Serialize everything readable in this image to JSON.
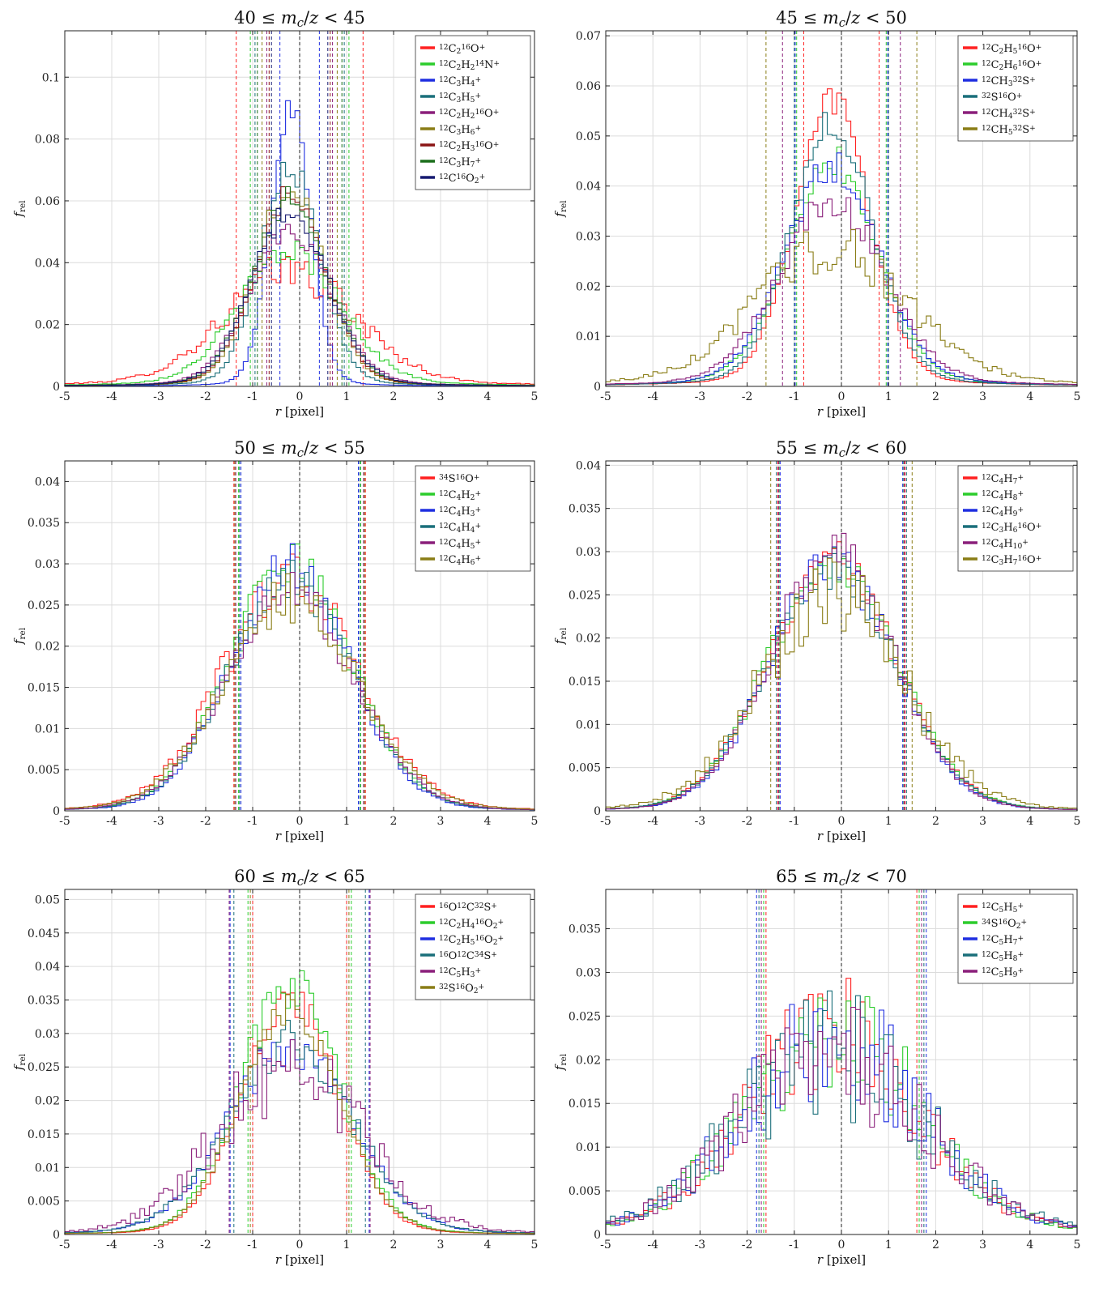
{
  "chart_data": [
    {
      "type": "histogram-step",
      "title": "40 ≤ m_c/z < 45",
      "xlabel": "r [pixel]",
      "ylabel": "f_rel",
      "xlim": [
        -5,
        5
      ],
      "ylim": [
        0,
        0.115
      ],
      "xticks": [
        -5,
        -4,
        -3,
        -2,
        -1,
        0,
        1,
        2,
        3,
        4,
        5
      ],
      "xtick_labels": [
        "-5",
        "-4",
        "-3",
        "-2",
        "-1",
        "0",
        "1",
        "2",
        "3",
        "4",
        "5"
      ],
      "yticks": [
        0,
        0.02,
        0.04,
        0.06,
        0.08,
        0.1
      ],
      "ytick_labels": [
        "0",
        "0.02",
        "0.04",
        "0.06",
        "0.08",
        "0.1"
      ],
      "grid": true,
      "legend_position": "top-right",
      "center_line_x": 0,
      "series": [
        {
          "name": "¹²C₂¹⁶O⁺",
          "color": "#ff2020",
          "peak": 0.04,
          "sigma": 1.35,
          "tail": 0.12,
          "noise": 0.18,
          "width_line": 1.35
        },
        {
          "name": "¹²C₂H₂¹⁴N⁺",
          "color": "#2ccc2c",
          "peak": 0.048,
          "sigma": 1.05,
          "tail": 0.1,
          "noise": 0.12,
          "width_line": 1.05
        },
        {
          "name": "¹²C₃H₄⁺",
          "color": "#1f2ee0",
          "peak": 0.104,
          "sigma": 0.42,
          "tail": 0.05,
          "noise": 0.06,
          "width_line": 0.42
        },
        {
          "name": "¹²C₃H₅⁺",
          "color": "#1a6f7a",
          "peak": 0.08,
          "sigma": 0.62,
          "tail": 0.07,
          "noise": 0.07,
          "width_line": 0.95
        },
        {
          "name": "¹²C₂H₂¹⁶O⁺",
          "color": "#8a1f7a",
          "peak": 0.057,
          "sigma": 0.85,
          "tail": 0.08,
          "noise": 0.08,
          "width_line": 0.7
        },
        {
          "name": "¹²C₃H₆⁺",
          "color": "#8a7d16",
          "peak": 0.073,
          "sigma": 0.72,
          "tail": 0.07,
          "noise": 0.07,
          "width_line": 0.8
        },
        {
          "name": "¹²C₂H₃¹⁶O⁺",
          "color": "#8a1414",
          "peak": 0.07,
          "sigma": 0.75,
          "tail": 0.07,
          "noise": 0.07,
          "width_line": 0.65
        },
        {
          "name": "¹²C₃H₇⁺",
          "color": "#1a6e1a",
          "peak": 0.068,
          "sigma": 0.78,
          "tail": 0.07,
          "noise": 0.07,
          "width_line": 0.9
        },
        {
          "name": "¹²C¹⁶O₂⁺",
          "color": "#161a70",
          "peak": 0.063,
          "sigma": 0.8,
          "tail": 0.07,
          "noise": 0.08,
          "width_line": 0.6
        }
      ]
    },
    {
      "type": "histogram-step",
      "title": "45 ≤ m_c/z < 50",
      "xlabel": "r [pixel]",
      "ylabel": "f_rel",
      "xlim": [
        -5,
        5
      ],
      "ylim": [
        0,
        0.071
      ],
      "xticks": [
        -5,
        -4,
        -3,
        -2,
        -1,
        0,
        1,
        2,
        3,
        4,
        5
      ],
      "xtick_labels": [
        "-5",
        "-4",
        "-3",
        "-2",
        "-1",
        "0",
        "1",
        "2",
        "3",
        "4",
        "5"
      ],
      "yticks": [
        0,
        0.01,
        0.02,
        0.03,
        0.04,
        0.05,
        0.06,
        0.07
      ],
      "ytick_labels": [
        "0",
        "0.01",
        "0.02",
        "0.03",
        "0.04",
        "0.05",
        "0.06",
        "0.07"
      ],
      "grid": true,
      "legend_position": "top-right",
      "center_line_x": 0,
      "series": [
        {
          "name": "¹²C₂H₅¹⁶O⁺",
          "color": "#ff2020",
          "peak": 0.064,
          "sigma": 0.78,
          "tail": 0.08,
          "noise": 0.06,
          "width_line": 0.8
        },
        {
          "name": "¹²C₂H₆¹⁶O⁺",
          "color": "#2ccc2c",
          "peak": 0.05,
          "sigma": 0.95,
          "tail": 0.09,
          "noise": 0.08,
          "width_line": 0.95
        },
        {
          "name": "¹²CH₃³²S⁺",
          "color": "#1f2ee0",
          "peak": 0.048,
          "sigma": 0.98,
          "tail": 0.09,
          "noise": 0.08,
          "width_line": 0.98
        },
        {
          "name": "³²S¹⁶O⁺",
          "color": "#1a6f7a",
          "peak": 0.059,
          "sigma": 0.85,
          "tail": 0.08,
          "noise": 0.07,
          "width_line": 1.0
        },
        {
          "name": "¹²CH₄³²S⁺",
          "color": "#8a1f7a",
          "peak": 0.04,
          "sigma": 1.1,
          "tail": 0.1,
          "noise": 0.1,
          "width_line": 1.25
        },
        {
          "name": "¹²CH₅³²S⁺",
          "color": "#8a7d16",
          "peak": 0.029,
          "sigma": 1.55,
          "tail": 0.14,
          "noise": 0.18,
          "width_line": 1.6
        }
      ]
    },
    {
      "type": "histogram-step",
      "title": "50 ≤ m_c/z < 55",
      "xlabel": "r [pixel]",
      "ylabel": "f_rel",
      "xlim": [
        -5,
        5
      ],
      "ylim": [
        0,
        0.0425
      ],
      "xticks": [
        -5,
        -4,
        -3,
        -2,
        -1,
        0,
        1,
        2,
        3,
        4,
        5
      ],
      "xtick_labels": [
        "-5",
        "-4",
        "-3",
        "-2",
        "-1",
        "0",
        "1",
        "2",
        "3",
        "4",
        "5"
      ],
      "yticks": [
        0,
        0.005,
        0.01,
        0.015,
        0.02,
        0.025,
        0.03,
        0.035,
        0.04
      ],
      "ytick_labels": [
        "0",
        "0.005",
        "0.01",
        "0.015",
        "0.02",
        "0.025",
        "0.03",
        "0.035",
        "0.04"
      ],
      "grid": true,
      "legend_position": "top-right",
      "center_line_x": 0,
      "series": [
        {
          "name": "³⁴S¹⁶O⁺",
          "color": "#ff2020",
          "peak": 0.033,
          "sigma": 1.4,
          "tail": 0.04,
          "noise": 0.12,
          "width_line": 1.4
        },
        {
          "name": "¹²C₄H₂⁺",
          "color": "#2ccc2c",
          "peak": 0.035,
          "sigma": 1.3,
          "tail": 0.03,
          "noise": 0.1,
          "width_line": 1.3
        },
        {
          "name": "¹²C₄H₃⁺",
          "color": "#1f2ee0",
          "peak": 0.035,
          "sigma": 1.25,
          "tail": 0.03,
          "noise": 0.1,
          "width_line": 1.25
        },
        {
          "name": "¹²C₄H₄⁺",
          "color": "#1a6f7a",
          "peak": 0.033,
          "sigma": 1.3,
          "tail": 0.03,
          "noise": 0.09,
          "width_line": 1.28
        },
        {
          "name": "¹²C₄H₅⁺",
          "color": "#8a1f7a",
          "peak": 0.031,
          "sigma": 1.35,
          "tail": 0.03,
          "noise": 0.1,
          "width_line": 1.36
        },
        {
          "name": "¹²C₄H₆⁺",
          "color": "#8a7d16",
          "peak": 0.03,
          "sigma": 1.4,
          "tail": 0.04,
          "noise": 0.12,
          "width_line": 1.38
        }
      ]
    },
    {
      "type": "histogram-step",
      "title": "55 ≤ m_c/z < 60",
      "xlabel": "r [pixel]",
      "ylabel": "f_rel",
      "xlim": [
        -5,
        5
      ],
      "ylim": [
        0,
        0.0405
      ],
      "xticks": [
        -5,
        -4,
        -3,
        -2,
        -1,
        0,
        1,
        2,
        3,
        4,
        5
      ],
      "xtick_labels": [
        "-5",
        "-4",
        "-3",
        "-2",
        "-1",
        "0",
        "1",
        "2",
        "3",
        "4",
        "5"
      ],
      "yticks": [
        0,
        0.005,
        0.01,
        0.015,
        0.02,
        0.025,
        0.03,
        0.035,
        0.04
      ],
      "ytick_labels": [
        "0",
        "0.005",
        "0.01",
        "0.015",
        "0.02",
        "0.025",
        "0.03",
        "0.035",
        "0.04"
      ],
      "grid": true,
      "legend_position": "top-right",
      "center_line_x": 0,
      "series": [
        {
          "name": "¹²C₄H₇⁺",
          "color": "#ff2020",
          "peak": 0.034,
          "sigma": 1.35,
          "tail": 0.03,
          "noise": 0.09,
          "width_line": 1.35
        },
        {
          "name": "¹²C₄H₈⁺",
          "color": "#2ccc2c",
          "peak": 0.034,
          "sigma": 1.35,
          "tail": 0.03,
          "noise": 0.09,
          "width_line": 1.32
        },
        {
          "name": "¹²C₄H₉⁺",
          "color": "#1f2ee0",
          "peak": 0.034,
          "sigma": 1.3,
          "tail": 0.03,
          "noise": 0.09,
          "width_line": 1.3
        },
        {
          "name": "¹²C₃H₆¹⁶O⁺",
          "color": "#1a6f7a",
          "peak": 0.033,
          "sigma": 1.35,
          "tail": 0.03,
          "noise": 0.09,
          "width_line": 1.38
        },
        {
          "name": "¹²C₄H₁₀⁺",
          "color": "#8a1f7a",
          "peak": 0.035,
          "sigma": 1.3,
          "tail": 0.03,
          "noise": 0.1,
          "width_line": 1.33
        },
        {
          "name": "¹²C₃H₇¹⁶O⁺",
          "color": "#8a7d16",
          "peak": 0.029,
          "sigma": 1.5,
          "tail": 0.04,
          "noise": 0.2,
          "width_line": 1.5
        }
      ]
    },
    {
      "type": "histogram-step",
      "title": "60 ≤ m_c/z < 65",
      "xlabel": "r [pixel]",
      "ylabel": "f_rel",
      "xlim": [
        -5,
        5
      ],
      "ylim": [
        0,
        0.0515
      ],
      "xticks": [
        -5,
        -4,
        -3,
        -2,
        -1,
        0,
        1,
        2,
        3,
        4,
        5
      ],
      "xtick_labels": [
        "-5",
        "-4",
        "-3",
        "-2",
        "-1",
        "0",
        "1",
        "2",
        "3",
        "4",
        "5"
      ],
      "yticks": [
        0,
        0.005,
        0.01,
        0.015,
        0.02,
        0.025,
        0.03,
        0.035,
        0.04,
        0.045,
        0.05
      ],
      "ytick_labels": [
        "0",
        "0.005",
        "0.01",
        "0.015",
        "0.02",
        "0.025",
        "0.03",
        "0.035",
        "0.04",
        "0.045",
        "0.05"
      ],
      "grid": true,
      "legend_position": "top-right",
      "center_line_x": 0,
      "series": [
        {
          "name": "¹⁶O¹²C³²S⁺",
          "color": "#ff2020",
          "peak": 0.041,
          "sigma": 1.0,
          "tail": 0.04,
          "noise": 0.08,
          "width_line": 1.0
        },
        {
          "name": "¹²C₂H₄¹⁶O₂⁺",
          "color": "#2ccc2c",
          "peak": 0.043,
          "sigma": 1.05,
          "tail": 0.04,
          "noise": 0.1,
          "width_line": 1.1
        },
        {
          "name": "¹²C₂H₅¹⁶O₂⁺",
          "color": "#1f2ee0",
          "peak": 0.032,
          "sigma": 1.3,
          "tail": 0.05,
          "noise": 0.12,
          "width_line": 1.48
        },
        {
          "name": "¹⁶O¹²C³⁴S⁺",
          "color": "#1a6f7a",
          "peak": 0.033,
          "sigma": 1.3,
          "tail": 0.05,
          "noise": 0.12,
          "width_line": 1.4
        },
        {
          "name": "¹²C₅H₃⁺",
          "color": "#8a1f7a",
          "peak": 0.029,
          "sigma": 1.5,
          "tail": 0.06,
          "noise": 0.3,
          "width_line": 1.5
        },
        {
          "name": "³²S¹⁶O₂⁺",
          "color": "#8a7d16",
          "peak": 0.039,
          "sigma": 1.05,
          "tail": 0.04,
          "noise": 0.09,
          "width_line": 1.05
        }
      ]
    },
    {
      "type": "histogram-step",
      "title": "65 ≤ m_c/z < 70",
      "xlabel": "r [pixel]",
      "ylabel": "f_rel",
      "xlim": [
        -5,
        5
      ],
      "ylim": [
        0,
        0.0395
      ],
      "xticks": [
        -5,
        -4,
        -3,
        -2,
        -1,
        0,
        1,
        2,
        3,
        4,
        5
      ],
      "xtick_labels": [
        "-5",
        "-4",
        "-3",
        "-2",
        "-1",
        "0",
        "1",
        "2",
        "3",
        "4",
        "5"
      ],
      "yticks": [
        0,
        0.005,
        0.01,
        0.015,
        0.02,
        0.025,
        0.03,
        0.035
      ],
      "ytick_labels": [
        "0",
        "0.005",
        "0.01",
        "0.015",
        "0.02",
        "0.025",
        "0.03",
        "0.035"
      ],
      "grid": true,
      "legend_position": "top-right",
      "center_line_x": 0,
      "series": [
        {
          "name": "¹²C₅H₅⁺",
          "color": "#ff2020",
          "peak": 0.027,
          "sigma": 1.8,
          "tail": 0.06,
          "noise": 0.3,
          "width_line": 1.6
        },
        {
          "name": "³⁴S¹⁶O₂⁺",
          "color": "#2ccc2c",
          "peak": 0.027,
          "sigma": 1.8,
          "tail": 0.06,
          "noise": 0.3,
          "width_line": 1.65
        },
        {
          "name": "¹²C₅H₇⁺",
          "color": "#1f2ee0",
          "peak": 0.026,
          "sigma": 1.85,
          "tail": 0.06,
          "noise": 0.32,
          "width_line": 1.8
        },
        {
          "name": "¹²C₅H₈⁺",
          "color": "#1a6f7a",
          "peak": 0.024,
          "sigma": 1.95,
          "tail": 0.06,
          "noise": 0.38,
          "width_line": 1.75
        },
        {
          "name": "¹²C₅H₉⁺",
          "color": "#8a1f7a",
          "peak": 0.024,
          "sigma": 1.9,
          "tail": 0.06,
          "noise": 0.36,
          "width_line": 1.7
        }
      ]
    }
  ]
}
